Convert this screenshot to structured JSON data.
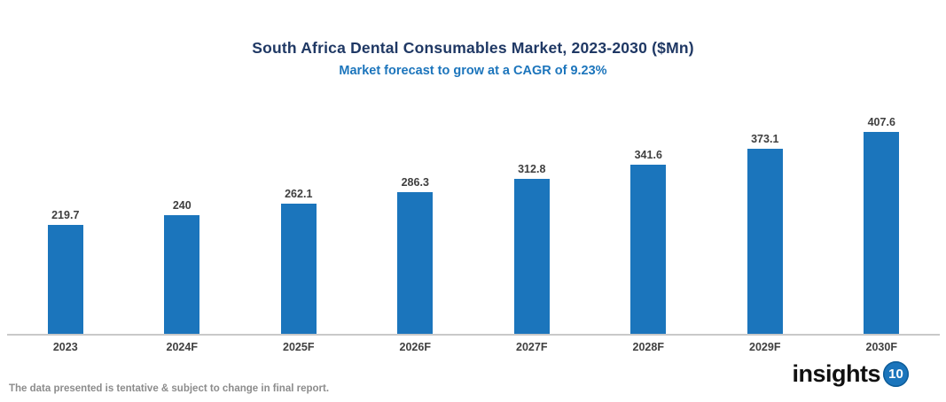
{
  "header": {
    "title": "South Africa Dental Consumables Market, 2023-2030 ($Mn)",
    "subtitle": "Market forecast to grow at a CAGR of 9.23%"
  },
  "footer": {
    "note": "The data presented is tentative & subject to change in final report.",
    "logo_text": "insights",
    "logo_badge": "10"
  },
  "colors": {
    "bar": "#1B75BC",
    "title": "#1F3864",
    "subtitle": "#1C75BC",
    "value_label": "#3F3F3F",
    "axis_label": "#404040",
    "axis_line": "#C9C9C9",
    "footer_note": "#8C8C8C",
    "logo_badge_bg": "#1B75BC"
  },
  "chart_data": {
    "type": "bar",
    "title": "South Africa Dental Consumables Market, 2023-2030 ($Mn)",
    "subtitle": "Market forecast to grow at a CAGR of 9.23%",
    "categories": [
      "2023",
      "2024F",
      "2025F",
      "2026F",
      "2027F",
      "2028F",
      "2029F",
      "2030F"
    ],
    "values": [
      219.7,
      240,
      262.1,
      286.3,
      312.8,
      341.6,
      373.1,
      407.6
    ],
    "xlabel": "",
    "ylabel": "",
    "ylim": [
      0,
      450
    ],
    "grid": false,
    "legend": false,
    "value_labels": true,
    "bar_color": "#1B75BC"
  }
}
